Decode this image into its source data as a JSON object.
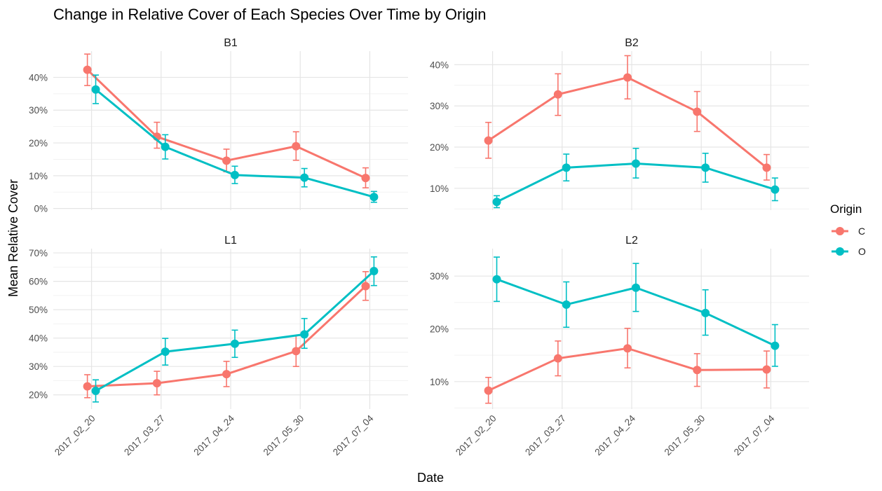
{
  "chart_data": {
    "type": "line",
    "title": "Change in Relative Cover of Each Species Over Time by Origin",
    "xlabel": "Date",
    "ylabel": "Mean Relative Cover",
    "grid": true,
    "legend": {
      "title": "Origin",
      "placement": "right",
      "entries": [
        {
          "name": "C",
          "color": "#F8766D"
        },
        {
          "name": "O",
          "color": "#00BFC4"
        }
      ]
    },
    "categories": [
      "2017_02_20",
      "2017_03_27",
      "2017_04_24",
      "2017_05_30",
      "2017_07_04"
    ],
    "panels": [
      {
        "label": "B1",
        "y_ticks": [
          0,
          10,
          20,
          30,
          40
        ],
        "ylim": [
          -0.5,
          48
        ],
        "series": [
          {
            "name": "C",
            "values": [
              42.3,
              21.9,
              14.6,
              19.0,
              9.3
            ],
            "lower": [
              37.5,
              18.4,
              11.2,
              14.7,
              6.3
            ],
            "upper": [
              47.1,
              26.3,
              18.1,
              23.4,
              12.4
            ]
          },
          {
            "name": "O",
            "values": [
              36.3,
              18.8,
              10.2,
              9.4,
              3.5
            ],
            "lower": [
              32.0,
              15.1,
              7.6,
              6.6,
              1.9
            ],
            "upper": [
              40.7,
              22.5,
              12.9,
              12.2,
              5.2
            ]
          }
        ]
      },
      {
        "label": "B2",
        "y_ticks": [
          10,
          20,
          30,
          40
        ],
        "ylim": [
          4.7,
          43.3
        ],
        "series": [
          {
            "name": "C",
            "values": [
              21.6,
              32.8,
              36.9,
              28.6,
              15.0
            ],
            "lower": [
              17.3,
              27.7,
              31.7,
              23.8,
              12.0
            ],
            "upper": [
              26.0,
              37.8,
              42.2,
              33.5,
              18.2
            ]
          },
          {
            "name": "O",
            "values": [
              6.7,
              15.0,
              16.0,
              15.0,
              9.7
            ],
            "lower": [
              5.3,
              11.8,
              12.5,
              11.5,
              7.0
            ],
            "upper": [
              8.2,
              18.3,
              19.7,
              18.5,
              12.5
            ]
          }
        ]
      },
      {
        "label": "L1",
        "y_ticks": [
          20,
          30,
          40,
          50,
          60,
          70
        ],
        "ylim": [
          15,
          71.5
        ],
        "series": [
          {
            "name": "C",
            "values": [
              23.0,
              24.1,
              27.3,
              35.4,
              58.3
            ],
            "lower": [
              19.0,
              20.0,
              22.9,
              30.0,
              53.3
            ],
            "upper": [
              27.1,
              28.3,
              31.8,
              40.9,
              63.4
            ]
          },
          {
            "name": "O",
            "values": [
              21.4,
              35.2,
              38.0,
              41.3,
              63.6
            ],
            "lower": [
              17.5,
              30.5,
              33.2,
              36.4,
              58.5
            ],
            "upper": [
              25.3,
              39.9,
              42.8,
              46.9,
              68.6
            ]
          }
        ]
      },
      {
        "label": "L2",
        "y_ticks": [
          10,
          20,
          30
        ],
        "ylim": [
          4.8,
          35.2
        ],
        "series": [
          {
            "name": "C",
            "values": [
              8.3,
              14.4,
              16.3,
              12.2,
              12.3
            ],
            "lower": [
              5.9,
              11.1,
              12.6,
              9.1,
              8.8
            ],
            "upper": [
              10.8,
              17.7,
              20.1,
              15.3,
              15.8
            ]
          },
          {
            "name": "O",
            "values": [
              29.4,
              24.6,
              27.8,
              23.0,
              16.8
            ],
            "lower": [
              25.2,
              20.3,
              23.3,
              18.8,
              12.9
            ],
            "upper": [
              33.6,
              28.9,
              32.4,
              27.4,
              20.8
            ]
          }
        ]
      }
    ]
  }
}
